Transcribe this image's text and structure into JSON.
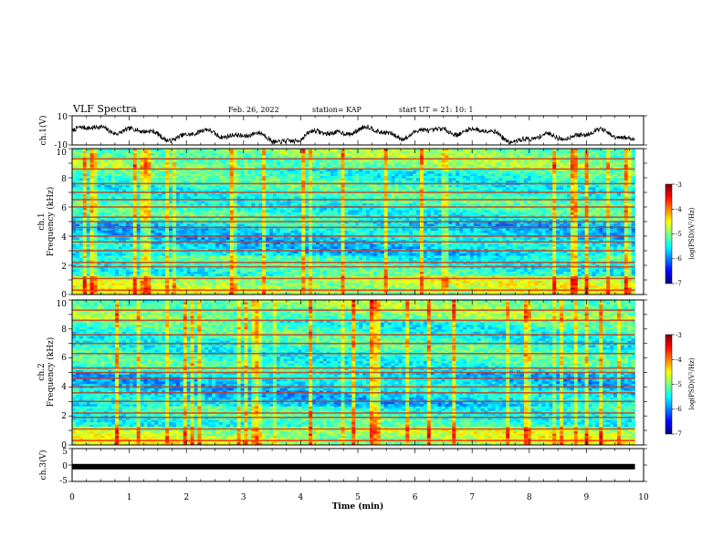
{
  "header": {
    "title": "VLF Spectra",
    "date": "Feb. 26, 2022",
    "station": "station= KAP",
    "start": "start  UT =   21: 10: 1"
  },
  "chart_data": [
    {
      "type": "line",
      "panel": "ch1-waveform",
      "ylabel": "ch.1(V)",
      "ylim": [
        -10,
        10
      ],
      "y_ticks": [
        "10",
        "-10"
      ],
      "xlim": [
        0,
        10
      ],
      "data_extent_min": [
        0,
        9.85
      ],
      "series_color": "#000000"
    },
    {
      "type": "heatmap",
      "panel": "ch1-spectrogram",
      "ylabel": "ch.1\nFrequency (kHz)",
      "ylabel_lines": [
        "ch.1",
        "Frequency (kHz)"
      ],
      "ylim": [
        0,
        10
      ],
      "y_ticks": [
        "0",
        "2",
        "4",
        "6",
        "8",
        "10"
      ],
      "xlim": [
        0,
        10
      ],
      "colorbar": {
        "label": "log(PSD)(V²/Hz)",
        "range": [
          -7,
          -3
        ],
        "ticks": [
          "-3",
          "-4",
          "-5",
          "-6",
          "-7"
        ],
        "colormap": "jet"
      },
      "narrowband_lines_khz": [
        0.3,
        1.1,
        1.9,
        2.2,
        3.0,
        3.6,
        4.0,
        4.6,
        5.0,
        5.3,
        6.0,
        6.5,
        7.0,
        7.6,
        8.6,
        9.3
      ]
    },
    {
      "type": "heatmap",
      "panel": "ch2-spectrogram",
      "ylabel": "ch.2\nFrequency (kHz)",
      "ylabel_lines": [
        "ch.2",
        "Frequency (kHz)"
      ],
      "ylim": [
        0,
        10
      ],
      "y_ticks": [
        "0",
        "2",
        "4",
        "6",
        "8",
        "10"
      ],
      "xlim": [
        0,
        10
      ],
      "colorbar": {
        "label": "log(PSD)(V²/Hz)",
        "range": [
          -7,
          -3
        ],
        "ticks": [
          "-3",
          "-4",
          "-5",
          "-6",
          "-7"
        ],
        "colormap": "jet"
      },
      "narrowband_lines_khz": [
        0.3,
        1.1,
        1.9,
        2.2,
        3.0,
        3.6,
        4.0,
        4.6,
        5.0,
        5.3,
        6.3,
        7.0,
        7.6,
        8.6,
        9.3
      ]
    },
    {
      "type": "line",
      "panel": "ch3-waveform",
      "ylabel": "ch.3(V)",
      "ylim": [
        -5,
        5
      ],
      "y_ticks": [
        "5",
        "0",
        "-5"
      ],
      "xlim": [
        0,
        10
      ],
      "xlabel": "Time  (min)",
      "x_ticks": [
        "0",
        "1",
        "2",
        "3",
        "4",
        "5",
        "6",
        "7",
        "8",
        "9",
        "10"
      ],
      "constant_value_v": -0.5,
      "data_extent_min": [
        0,
        9.85
      ]
    }
  ]
}
